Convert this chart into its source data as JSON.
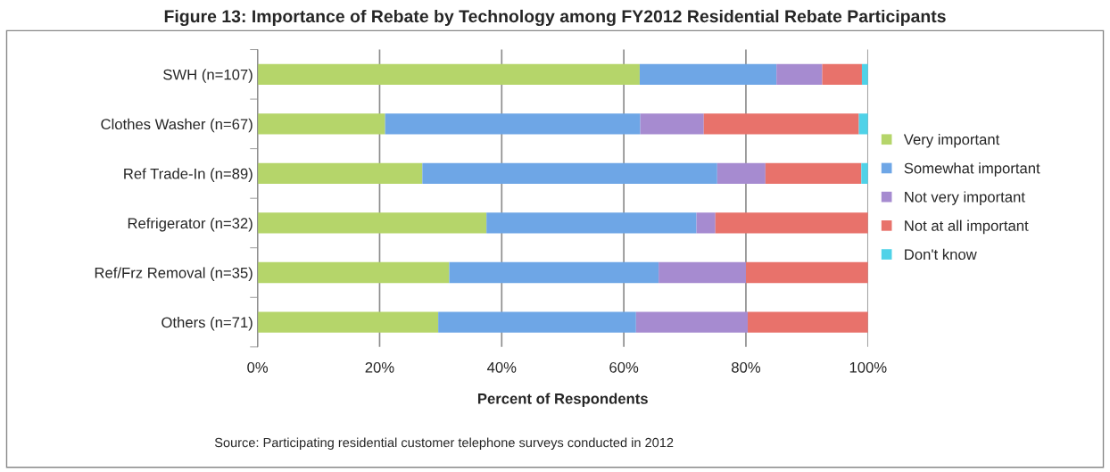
{
  "chart_data": {
    "type": "bar",
    "orientation": "horizontal",
    "stacked": true,
    "title": "Figure 13: Importance of Rebate by Technology among FY2012 Residential Rebate Participants",
    "xlabel": "Percent of Respondents",
    "annotations": [
      "Source: Participating residential customer telephone surveys conducted in 2012"
    ],
    "categories": [
      "SWH (n=107)",
      "Clothes Washer (n=67)",
      "Ref Trade-In (n=89)",
      "Refrigerator (n=32)",
      "Ref/Frz Removal (n=35)",
      "Others (n=71)"
    ],
    "series": [
      {
        "name": "Very important",
        "color": "#b5d56a",
        "values": [
          62.6,
          20.9,
          27.0,
          37.5,
          31.4,
          29.6
        ]
      },
      {
        "name": "Somewhat important",
        "color": "#6ea6e6",
        "values": [
          22.4,
          41.8,
          48.3,
          34.4,
          34.3,
          32.4
        ]
      },
      {
        "name": "Not very important",
        "color": "#a68bd0",
        "values": [
          7.5,
          10.4,
          7.9,
          3.1,
          14.3,
          18.3
        ]
      },
      {
        "name": "Not at all important",
        "color": "#e8726b",
        "values": [
          6.5,
          25.4,
          15.7,
          25.0,
          20.0,
          19.7
        ]
      },
      {
        "name": "Don't know",
        "color": "#4fd2e8",
        "values": [
          1.0,
          1.5,
          1.1,
          0,
          0,
          0
        ]
      }
    ],
    "xlim": [
      0,
      100
    ],
    "xticks": [
      {
        "value": 0,
        "label": "0%"
      },
      {
        "value": 20,
        "label": "20%"
      },
      {
        "value": 40,
        "label": "40%"
      },
      {
        "value": 60,
        "label": "60%"
      },
      {
        "value": 80,
        "label": "80%"
      },
      {
        "value": 100,
        "label": "100%"
      }
    ],
    "grid": "x",
    "legend": "right"
  }
}
